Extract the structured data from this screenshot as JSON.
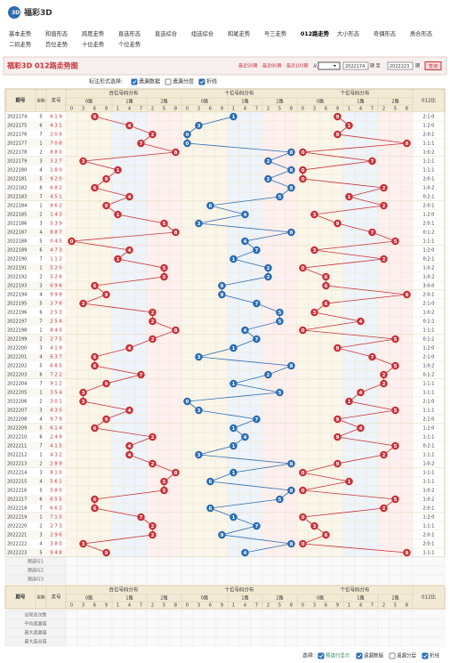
{
  "header": {
    "logo": "福彩3D",
    "nav": [
      "基本走势",
      "和值形态",
      "跨度走势",
      "直选形态",
      "直选综合",
      "组选综合",
      "和尾走势",
      "号三走势",
      "012路走势",
      "大小形态",
      "奇偶形态",
      "质合形态"
    ],
    "nav2": [
      "二码走势",
      "百位走势",
      "十位走势",
      "个位走势"
    ],
    "active": "012路走势"
  },
  "toolbar": {
    "title": "福彩3D 012路走势图",
    "periods": [
      "最近50期",
      "最近80期",
      "最近100期"
    ],
    "from_label": "从",
    "from": "2022174",
    "to_label": "期 至",
    "to": "2022223",
    "to_suffix": "期",
    "query": "查询"
  },
  "options": {
    "label": "标注形式选择:",
    "items": [
      {
        "text": "遗漏数据",
        "checked": true
      },
      {
        "text": "遗漏分层",
        "checked": false
      },
      {
        "text": "折线",
        "checked": true
      }
    ]
  },
  "table": {
    "headers": {
      "issue": "期号",
      "week": "星期",
      "number": "奖号",
      "ratio": "012比"
    },
    "groups": [
      {
        "title": "百位号码分布",
        "color": "#c8313a"
      },
      {
        "title": "十位号码分布",
        "color": "#2a6cb3"
      },
      {
        "title": "个位号码分布",
        "color": "#c8313a"
      }
    ],
    "routes": [
      "0路",
      "1路",
      "2路"
    ],
    "digit_order": [
      0,
      3,
      6,
      9,
      1,
      4,
      7,
      2,
      5,
      8
    ],
    "rows": [
      {
        "issue": "2022174",
        "week": 5,
        "digits": [
          6,
          1,
          9
        ],
        "ratio": "2:1:0"
      },
      {
        "issue": "2022175",
        "week": 6,
        "digits": [
          4,
          3,
          1
        ],
        "ratio": "1:2:0"
      },
      {
        "issue": "2022176",
        "week": 7,
        "digits": [
          2,
          0,
          9
        ],
        "ratio": "2:0:1"
      },
      {
        "issue": "2022177",
        "week": 1,
        "digits": [
          7,
          0,
          8
        ],
        "ratio": "1:1:1"
      },
      {
        "issue": "2022178",
        "week": 2,
        "digits": [
          8,
          8,
          0
        ],
        "ratio": "1:0:2"
      },
      {
        "issue": "2022179",
        "week": 3,
        "digits": [
          3,
          2,
          7
        ],
        "ratio": "1:1:1"
      },
      {
        "issue": "2022180",
        "week": 4,
        "digits": [
          1,
          8,
          0
        ],
        "ratio": "1:1:1"
      },
      {
        "issue": "2022181",
        "week": 5,
        "digits": [
          9,
          2,
          0
        ],
        "ratio": "2:0:1"
      },
      {
        "issue": "2022182",
        "week": 6,
        "digits": [
          6,
          8,
          2
        ],
        "ratio": "1:0:2"
      },
      {
        "issue": "2022183",
        "week": 7,
        "digits": [
          4,
          5,
          1
        ],
        "ratio": "0:2:1"
      },
      {
        "issue": "2022184",
        "week": 1,
        "digits": [
          9,
          6,
          2
        ],
        "ratio": "2:0:1"
      },
      {
        "issue": "2022185",
        "week": 2,
        "digits": [
          1,
          4,
          3
        ],
        "ratio": "1:2:0"
      },
      {
        "issue": "2022186",
        "week": 3,
        "digits": [
          5,
          3,
          9
        ],
        "ratio": "2:0:1"
      },
      {
        "issue": "2022187",
        "week": 4,
        "digits": [
          8,
          8,
          7
        ],
        "ratio": "0:1:2"
      },
      {
        "issue": "2022188",
        "week": 5,
        "digits": [
          0,
          4,
          5
        ],
        "ratio": "1:1:1"
      },
      {
        "issue": "2022189",
        "week": 6,
        "digits": [
          4,
          7,
          3
        ],
        "ratio": "1:2:0"
      },
      {
        "issue": "2022190",
        "week": 7,
        "digits": [
          1,
          1,
          2
        ],
        "ratio": "0:2:1"
      },
      {
        "issue": "2022191",
        "week": 1,
        "digits": [
          5,
          2,
          0
        ],
        "ratio": "1:0:2"
      },
      {
        "issue": "2022192",
        "week": 2,
        "digits": [
          5,
          2,
          6
        ],
        "ratio": "1:0:2"
      },
      {
        "issue": "2022193",
        "week": 3,
        "digits": [
          6,
          9,
          6
        ],
        "ratio": "3:0:0"
      },
      {
        "issue": "2022194",
        "week": 4,
        "digits": [
          9,
          9,
          8
        ],
        "ratio": "2:0:1"
      },
      {
        "issue": "2022195",
        "week": 5,
        "digits": [
          3,
          7,
          6
        ],
        "ratio": "2:1:0"
      },
      {
        "issue": "2022196",
        "week": 6,
        "digits": [
          2,
          5,
          3
        ],
        "ratio": "1:0:2"
      },
      {
        "issue": "2022197",
        "week": 7,
        "digits": [
          2,
          5,
          4
        ],
        "ratio": "0:1:2"
      },
      {
        "issue": "2022198",
        "week": 1,
        "digits": [
          8,
          4,
          0
        ],
        "ratio": "1:1:1"
      },
      {
        "issue": "2022199",
        "week": 2,
        "digits": [
          2,
          7,
          5
        ],
        "ratio": "0:1:2"
      },
      {
        "issue": "2022200",
        "week": 3,
        "digits": [
          4,
          1,
          9
        ],
        "ratio": "1:2:0"
      },
      {
        "issue": "2022201",
        "week": 4,
        "digits": [
          6,
          3,
          7
        ],
        "ratio": "2:1:0"
      },
      {
        "issue": "2022202",
        "week": 5,
        "digits": [
          6,
          8,
          5
        ],
        "ratio": "1:0:2"
      },
      {
        "issue": "2022203",
        "week": 6,
        "digits": [
          7,
          2,
          2
        ],
        "ratio": "0:1:2"
      },
      {
        "issue": "2022204",
        "week": 7,
        "digits": [
          9,
          1,
          2
        ],
        "ratio": "1:1:1"
      },
      {
        "issue": "2022205",
        "week": 1,
        "digits": [
          3,
          5,
          4
        ],
        "ratio": "1:1:1"
      },
      {
        "issue": "2022206",
        "week": 2,
        "digits": [
          3,
          0,
          1
        ],
        "ratio": "2:1:0"
      },
      {
        "issue": "2022207",
        "week": 3,
        "digits": [
          4,
          3,
          5
        ],
        "ratio": "1:1:1"
      },
      {
        "issue": "2022208",
        "week": 4,
        "digits": [
          9,
          7,
          9
        ],
        "ratio": "2:1:0"
      },
      {
        "issue": "2022209",
        "week": 5,
        "digits": [
          6,
          1,
          4
        ],
        "ratio": "1:2:0"
      },
      {
        "issue": "2022210",
        "week": 6,
        "digits": [
          2,
          4,
          9
        ],
        "ratio": "1:1:1"
      },
      {
        "issue": "2022211",
        "week": 7,
        "digits": [
          4,
          1,
          5
        ],
        "ratio": "0:2:1"
      },
      {
        "issue": "2022212",
        "week": 1,
        "digits": [
          4,
          3,
          2
        ],
        "ratio": "1:1:1"
      },
      {
        "issue": "2022213",
        "week": 2,
        "digits": [
          2,
          8,
          9
        ],
        "ratio": "1:0:2"
      },
      {
        "issue": "2022214",
        "week": 3,
        "digits": [
          8,
          1,
          0
        ],
        "ratio": "1:1:1"
      },
      {
        "issue": "2022215",
        "week": 4,
        "digits": [
          5,
          6,
          1
        ],
        "ratio": "1:1:1"
      },
      {
        "issue": "2022216",
        "week": 5,
        "digits": [
          5,
          8,
          0
        ],
        "ratio": "1:0:2"
      },
      {
        "issue": "2022217",
        "week": 6,
        "digits": [
          6,
          5,
          5
        ],
        "ratio": "1:0:2"
      },
      {
        "issue": "2022218",
        "week": 7,
        "digits": [
          6,
          6,
          2
        ],
        "ratio": "2:0:1"
      },
      {
        "issue": "2022219",
        "week": 1,
        "digits": [
          7,
          1,
          0
        ],
        "ratio": "1:2:0"
      },
      {
        "issue": "2022220",
        "week": 2,
        "digits": [
          2,
          7,
          3
        ],
        "ratio": "1:1:1"
      },
      {
        "issue": "2022221",
        "week": 3,
        "digits": [
          2,
          9,
          6
        ],
        "ratio": "2:0:1"
      },
      {
        "issue": "2022222",
        "week": 4,
        "digits": [
          3,
          8,
          0
        ],
        "ratio": "2:0:1"
      },
      {
        "issue": "2022223",
        "week": 5,
        "digits": [
          9,
          4,
          8
        ],
        "ratio": "1:1:1"
      }
    ],
    "preselect": [
      "预选行1",
      "预选行2",
      "预选行3"
    ],
    "stats": [
      "出现总次数",
      "平均遗漏值",
      "最大遗漏值",
      "最大连出值"
    ]
  },
  "footer": {
    "label": "选择:",
    "items": [
      {
        "text": "预选行显示",
        "checked": true
      },
      {
        "text": "遗漏数据",
        "checked": true
      },
      {
        "text": "遗漏分层",
        "checked": false
      },
      {
        "text": "折线",
        "checked": true
      }
    ]
  }
}
